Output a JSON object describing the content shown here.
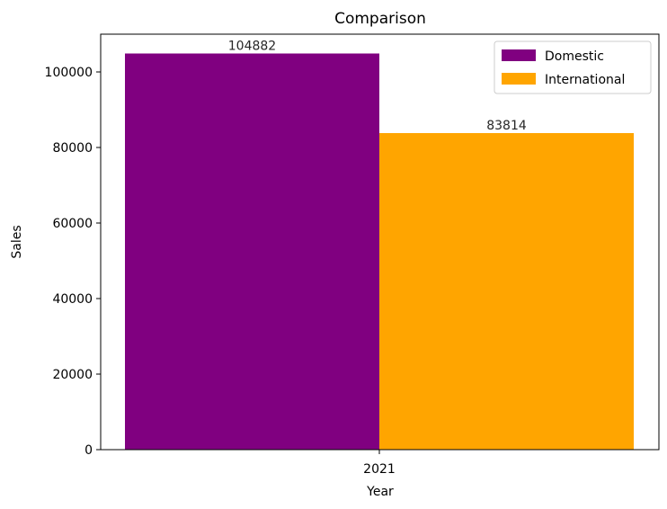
{
  "chart_data": {
    "type": "bar",
    "title": "Comparison",
    "xlabel": "Year",
    "ylabel": "Sales",
    "categories": [
      "2021"
    ],
    "series": [
      {
        "name": "Domestic",
        "values": [
          104882
        ],
        "color": "#800080"
      },
      {
        "name": "International",
        "values": [
          83814
        ],
        "color": "#ffa500"
      }
    ],
    "ylim": [
      0,
      110000
    ],
    "yticks": [
      0,
      20000,
      40000,
      60000,
      80000,
      100000
    ],
    "ytick_labels": [
      "0",
      "20000",
      "40000",
      "60000",
      "80000",
      "100000"
    ],
    "data_labels": [
      "104882",
      "83814"
    ],
    "legend_position": "top-right",
    "grid": false
  }
}
